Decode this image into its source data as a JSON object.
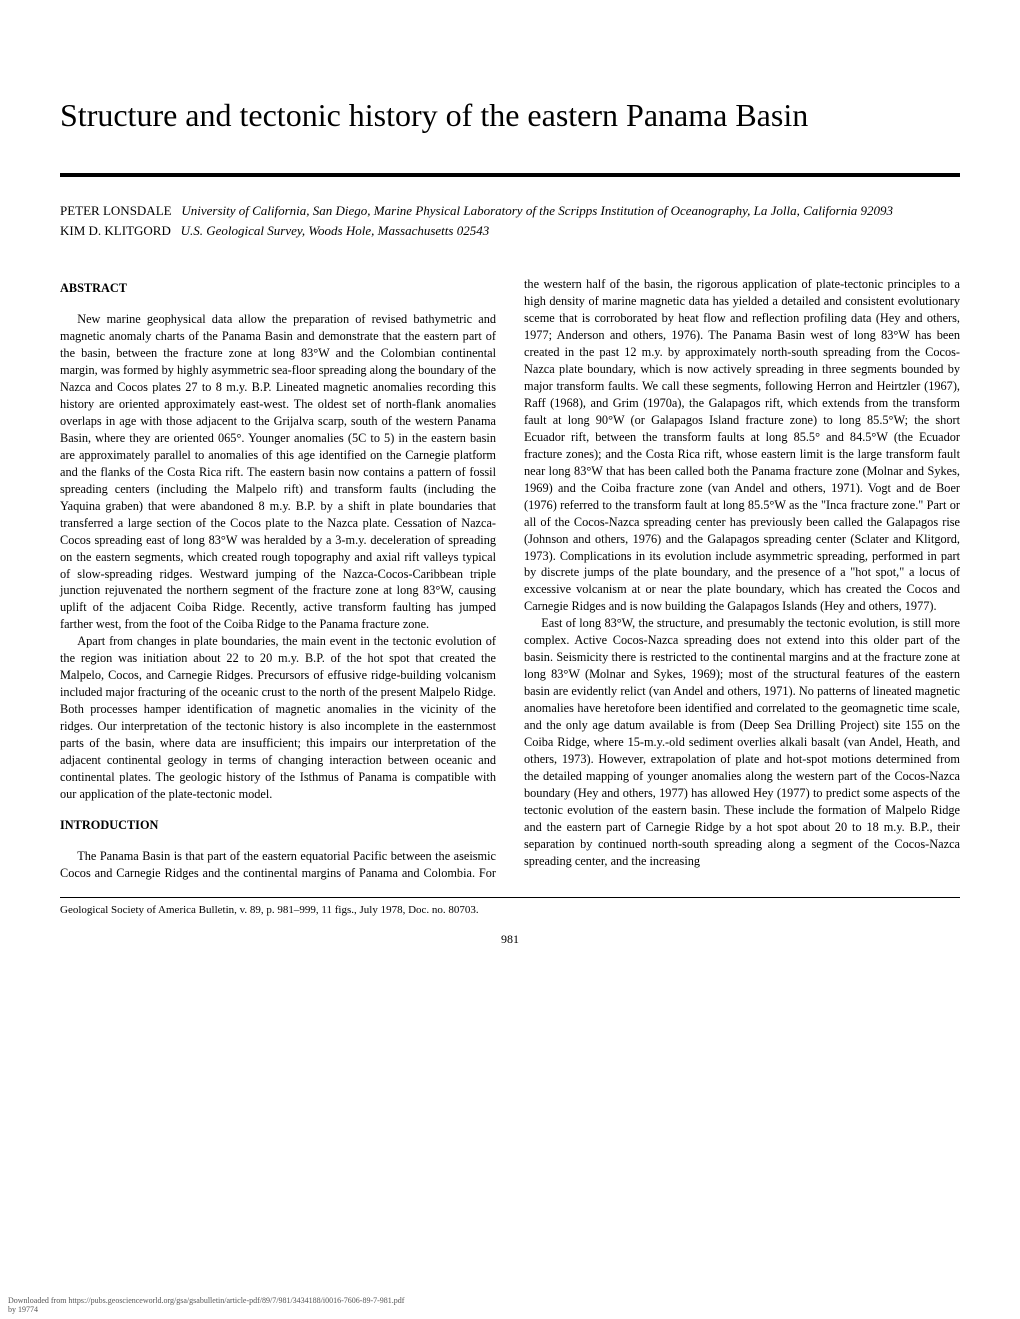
{
  "title": "Structure and tectonic history of the eastern Panama Basin",
  "authors": {
    "a1_name": "PETER LONSDALE",
    "a1_affil": "University of California, San Diego, Marine Physical Laboratory of the Scripps Institution of Oceanography, La Jolla, California 92093",
    "a2_name": "KIM D. KLITGORD",
    "a2_affil": "U.S. Geological Survey, Woods Hole, Massachusetts 02543"
  },
  "sections": {
    "abstract_head": "ABSTRACT",
    "intro_head": "INTRODUCTION"
  },
  "paras": {
    "p1": "New marine geophysical data allow the preparation of revised bathymetric and magnetic anomaly charts of the Panama Basin and demonstrate that the eastern part of the basin, between the fracture zone at long 83°W and the Colombian continental margin, was formed by highly asymmetric sea-floor spreading along the boundary of the Nazca and Cocos plates 27 to 8 m.y. B.P. Lineated magnetic anomalies recording this history are oriented approximately east-west. The oldest set of north-flank anomalies overlaps in age with those adjacent to the Grijalva scarp, south of the western Panama Basin, where they are oriented 065°. Younger anomalies (5C to 5) in the eastern basin are approximately parallel to anomalies of this age identified on the Carnegie platform and the flanks of the Costa Rica rift. The eastern basin now contains a pattern of fossil spreading centers (including the Malpelo rift) and transform faults (including the Yaquina graben) that were abandoned 8 m.y. B.P. by a shift in plate boundaries that transferred a large section of the Cocos plate to the Nazca plate. Cessation of Nazca-Cocos spreading east of long 83°W was heralded by a 3-m.y. deceleration of spreading on the eastern segments, which created rough topography and axial rift valleys typical of slow-spreading ridges. Westward jumping of the Nazca-Cocos-Caribbean triple junction rejuvenated the northern segment of the fracture zone at long 83°W, causing uplift of the adjacent Coiba Ridge. Recently, active transform faulting has jumped farther west, from the foot of the Coiba Ridge to the Panama fracture zone.",
    "p2": "Apart from changes in plate boundaries, the main event in the tectonic evolution of the region was initiation about 22 to 20 m.y. B.P. of the hot spot that created the Malpelo, Cocos, and Carnegie Ridges. Precursors of effusive ridge-building volcanism included major fracturing of the oceanic crust to the north of the present Malpelo Ridge. Both processes hamper identification of magnetic anomalies in the vicinity of the ridges. Our interpretation of the tectonic history is also incomplete in the easternmost parts of the basin, where data are insufficient; this impairs our interpretation of the adjacent continental geology in terms of changing interaction between oceanic and continental plates. The geologic history of the Isthmus of Panama is compatible with our application of the plate-tectonic model.",
    "p3": "The Panama Basin is that part of the eastern equatorial Pacific between the aseismic Cocos and Carnegie Ridges and the continental margins of Panama and Colombia. For the western half of the basin, the rigorous application of plate-tectonic principles to a high density of marine magnetic data has yielded a detailed and consistent evolutionary sceme that is corroborated by heat flow and reflection profiling data (Hey and others, 1977; Anderson and others, 1976). The Panama Basin west of long 83°W has been created in the past 12 m.y. by approximately north-south spreading from the Cocos-Nazca plate boundary, which is now actively spreading in three segments bounded by major transform faults. We call these segments, following Herron and Heirtzler (1967), Raff (1968), and Grim (1970a), the Galapagos rift, which extends from the transform fault at long 90°W (or Galapagos Island fracture zone) to long 85.5°W; the short Ecuador rift, between the transform faults at long 85.5° and 84.5°W (the Ecuador fracture zones); and the Costa Rica rift, whose eastern limit is the large transform fault near long 83°W that has been called both the Panama fracture zone (Molnar and Sykes, 1969) and the Coiba fracture zone (van Andel and others, 1971). Vogt and de Boer (1976) referred to the transform fault at long 85.5°W as the \"Inca fracture zone.\" Part or all of the Cocos-Nazca spreading center has previously been called the Galapagos rise (Johnson and others, 1976) and the Galapagos spreading center (Sclater and Klitgord, 1973). Complications in its evolution include asymmetric spreading, performed in part by discrete jumps of the plate boundary, and the presence of a \"hot spot,\" a locus of excessive volcanism at or near the plate boundary, which has created the Cocos and Carnegie Ridges and is now building the Galapagos Islands (Hey and others, 1977).",
    "p4": "East of long 83°W, the structure, and presumably the tectonic evolution, is still more complex. Active Cocos-Nazca spreading does not extend into this older part of the basin. Seismicity there is restricted to the continental margins and at the fracture zone at long 83°W (Molnar and Sykes, 1969); most of the structural features of the eastern basin are evidently relict (van Andel and others, 1971). No patterns of lineated magnetic anomalies have heretofore been identified and correlated to the geomagnetic time scale, and the only age datum available is from (Deep Sea Drilling Project) site 155 on the Coiba Ridge, where 15-m.y.-old sediment overlies alkali basalt (van Andel, Heath, and others, 1973). However, extrapolation of plate and hot-spot motions determined from the detailed mapping of younger anomalies along the western part of the Cocos-Nazca boundary (Hey and others, 1977) has allowed Hey (1977) to predict some aspects of the tectonic evolution of the eastern basin. These include the formation of Malpelo Ridge and the eastern part of Carnegie Ridge by a hot spot about 20 to 18 m.y. B.P., their separation by continued north-south spreading along a segment of the Cocos-Nazca spreading center, and the increasing"
  },
  "footer": {
    "citation": "Geological Society of America Bulletin, v. 89, p. 981–999, 11 figs., July 1978, Doc. no. 80703.",
    "page_num": "981",
    "download_line1": "Downloaded from https://pubs.geoscienceworld.org/gsa/gsabulletin/article-pdf/89/7/981/3434188/i0016-7606-89-7-981.pdf",
    "download_line2": "by 19774"
  }
}
